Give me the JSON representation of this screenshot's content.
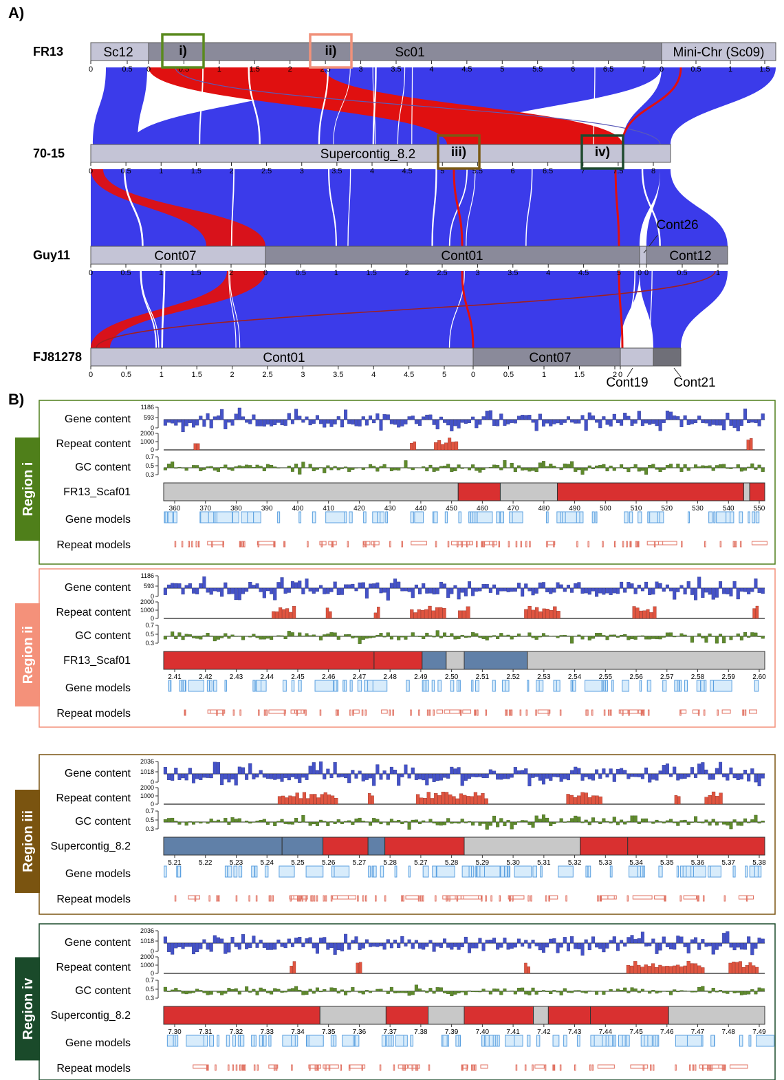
{
  "panel_a": {
    "label": "A)",
    "colors": {
      "synteny": "#3b3bea",
      "inverted": "#e01010",
      "track_light": "#c4c4d6",
      "track_mid": "#8a8a9a",
      "track_dark": "#6f6f78"
    },
    "strains": [
      {
        "name": "FR13",
        "contigs": [
          {
            "name": "Sc12",
            "ticks": [
              "0",
              "0.5"
            ]
          },
          {
            "name": "Sc01",
            "ticks": [
              "0",
              "0.5",
              "1",
              "1.5",
              "2",
              "2.5",
              "3",
              "3.5",
              "4",
              "4.5",
              "5",
              "5.5",
              "6",
              "6.5",
              "7"
            ]
          },
          {
            "name": "Mini-Chr (Sc09)",
            "ticks": [
              "0",
              "0.5",
              "1",
              "1.5"
            ]
          }
        ]
      },
      {
        "name": "70-15",
        "contigs": [
          {
            "name": "Supercontig_8.2",
            "ticks": [
              "0",
              "0.5",
              "1",
              "1.5",
              "2",
              "2.5",
              "3",
              "3.5",
              "4",
              "4.5",
              "5",
              "5.5",
              "6",
              "6.5",
              "7",
              "7.5",
              "8"
            ]
          }
        ]
      },
      {
        "name": "Guy11",
        "contigs": [
          {
            "name": "Cont07",
            "ticks": [
              "0",
              "0.5",
              "1",
              "1.5",
              "2"
            ]
          },
          {
            "name": "Cont01",
            "ticks": [
              "0",
              "0.5",
              "1",
              "1.5",
              "2",
              "2.5",
              "3",
              "3.5",
              "4",
              "4.5",
              "5"
            ]
          },
          {
            "name": "Cont26",
            "ticks": [
              "0"
            ]
          },
          {
            "name": "Cont12",
            "ticks": [
              "0",
              "0.5",
              "1"
            ]
          }
        ]
      },
      {
        "name": "FJ81278",
        "contigs": [
          {
            "name": "Cont01",
            "ticks": [
              "0",
              "0.5",
              "1",
              "1.5",
              "2",
              "2.5",
              "3",
              "3.5",
              "4",
              "4.5",
              "5"
            ]
          },
          {
            "name": "Cont07",
            "ticks": [
              "0",
              "0.5",
              "1",
              "1.5",
              "2"
            ]
          },
          {
            "name": "Cont19",
            "ticks": [
              "0"
            ]
          },
          {
            "name": "Cont21",
            "ticks": []
          }
        ]
      }
    ],
    "regions": [
      {
        "label": "i)",
        "color": "#5a8a1e"
      },
      {
        "label": "ii)",
        "color": "#f0917a"
      },
      {
        "label": "iii)",
        "color": "#7a5a14"
      },
      {
        "label": "iv)",
        "color": "#1e4a2e"
      }
    ]
  },
  "panel_b": {
    "label": "B)",
    "row_labels": {
      "gene": "Gene content",
      "repeat": "Repeat content",
      "gc": "GC content",
      "gene_models": "Gene models",
      "repeat_models": "Repeat models"
    },
    "colors": {
      "gene": "#4452c8",
      "repeat": "#e05540",
      "gc": "#5f8a2c",
      "block_red": "#d93030",
      "block_blue": "#6080a8",
      "block_gray": "#c8c8c8",
      "gene_model": "#5ba0e0",
      "repeat_model": "#e07060"
    },
    "regions": [
      {
        "title": "Region i",
        "color": "#4f7f1a",
        "gene_axis": [
          "1186",
          "593",
          "0"
        ],
        "repeat_axis": [
          "2000",
          "1000",
          "0"
        ],
        "gc_axis": [
          "0.7",
          "0.5",
          "0.3"
        ],
        "scaffold": "FR13_Scaf01",
        "ticks": [
          "360",
          "370",
          "380",
          "390",
          "400",
          "410",
          "420",
          "430",
          "440",
          "450",
          "460",
          "470",
          "480",
          "490",
          "500",
          "510",
          "520",
          "530",
          "540",
          "550"
        ]
      },
      {
        "title": "Region ii",
        "color": "#f4917a",
        "gene_axis": [
          "1186",
          "593",
          "0"
        ],
        "repeat_axis": [
          "2000",
          "1000",
          "0"
        ],
        "gc_axis": [
          "0.7",
          "0.5",
          "0.3"
        ],
        "scaffold": "FR13_Scaf01",
        "ticks": [
          "2.41",
          "2.42",
          "2.43",
          "2.44",
          "2.45",
          "2.46",
          "2.47",
          "2.48",
          "2.49",
          "2.50",
          "2.51",
          "2.52",
          "2.53",
          "2.54",
          "2.55",
          "2.56",
          "2.57",
          "2.58",
          "2.59",
          "2.60"
        ]
      },
      {
        "title": "Region iii",
        "color": "#7a5410",
        "gene_axis": [
          "2036",
          "1018",
          "0"
        ],
        "repeat_axis": [
          "2000",
          "1000",
          "0"
        ],
        "gc_axis": [
          "0.7",
          "0.5",
          "0.3"
        ],
        "scaffold": "Supercontig_8.2",
        "ticks": [
          "5.21",
          "5.22",
          "5.23",
          "5.24",
          "5.25",
          "5.26",
          "5.27",
          "5.28",
          "5.27",
          "5.28",
          "5.29",
          "5.30",
          "5.31",
          "5.32",
          "5.33",
          "5.34",
          "5.35",
          "5.36",
          "5.37",
          "5.38"
        ]
      },
      {
        "title": "Region iv",
        "color": "#1a4a2a",
        "gene_axis": [
          "2036",
          "1018",
          "0"
        ],
        "repeat_axis": [
          "2000",
          "1000",
          "0"
        ],
        "gc_axis": [
          "0.7",
          "0.5",
          "0.3"
        ],
        "scaffold": "Supercontig_8.2",
        "ticks": [
          "7.30",
          "7.31",
          "7.32",
          "7.33",
          "7.34",
          "7.35",
          "7.36",
          "7.37",
          "7.38",
          "7.39",
          "7.40",
          "7.41",
          "7.42",
          "7.43",
          "7.44",
          "7.45",
          "7.46",
          "7.47",
          "7.48",
          "7.49"
        ]
      }
    ]
  }
}
